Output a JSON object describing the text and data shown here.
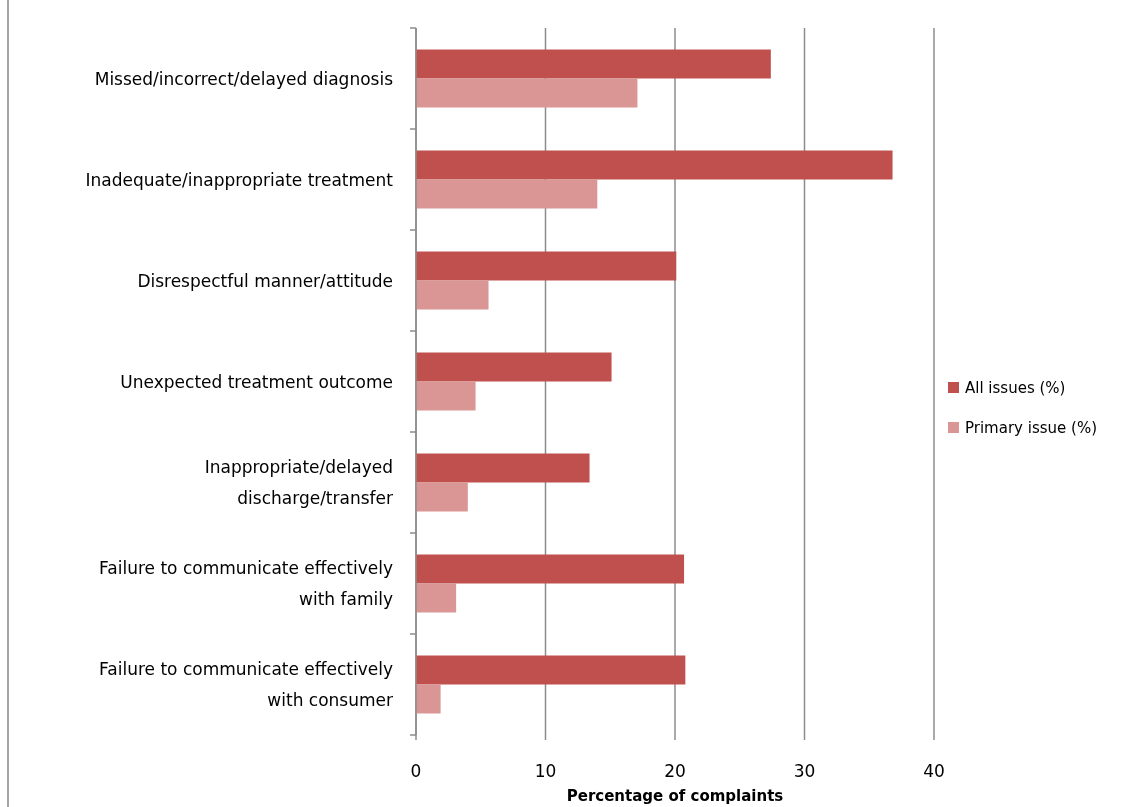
{
  "chart_data": {
    "type": "bar",
    "orientation": "horizontal",
    "xlabel": "Percentage of complaints",
    "categories": [
      "Missed/incorrect/delayed diagnosis",
      "Inadequate/inappropriate treatment",
      "Disrespectful manner/attitude",
      "Unexpected treatment outcome",
      "Inappropriate/delayed discharge/transfer",
      "Failure to communicate effectively with family",
      "Failure to communicate effectively with consumer"
    ],
    "series": [
      {
        "name": "All issues (%)",
        "color": "#c0504d",
        "values": [
          27.4,
          36.8,
          20.1,
          15.1,
          13.4,
          20.7,
          20.8
        ]
      },
      {
        "name": "Primary issue (%)",
        "color": "#d99694",
        "values": [
          17.1,
          14.0,
          5.6,
          4.6,
          4.0,
          3.1,
          1.9
        ]
      }
    ],
    "xlim": [
      0,
      40
    ],
    "xticks": [
      0,
      10,
      20,
      30,
      40
    ],
    "grid": "x",
    "legend": "right"
  }
}
